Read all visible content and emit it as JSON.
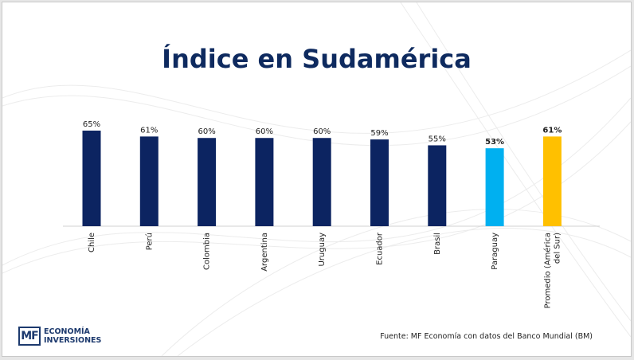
{
  "title": "Índice en Sudamérica",
  "source": "Fuente: MF Economía con datos del Banco Mundial (BM)",
  "logo": {
    "mark": "MF",
    "line1": "ECONOMÍA",
    "line2": "INVERSIONES"
  },
  "chart_data": {
    "type": "bar",
    "title": "Índice en Sudamérica",
    "categories": [
      "Chile",
      "Perú",
      "Colombia",
      "Argentina",
      "Uruguay",
      "Ecuador",
      "Brasil",
      "Paraguay",
      "Promedio (América del Sur)"
    ],
    "values": [
      65,
      61,
      60,
      60,
      60,
      59,
      55,
      53,
      61
    ],
    "labels": [
      "65%",
      "61%",
      "60%",
      "60%",
      "60%",
      "59%",
      "55%",
      "53%",
      "61%"
    ],
    "colors": [
      "#0c2461",
      "#0c2461",
      "#0c2461",
      "#0c2461",
      "#0c2461",
      "#0c2461",
      "#0c2461",
      "#00b0f0",
      "#ffc000"
    ],
    "bold_labels": [
      false,
      false,
      false,
      false,
      false,
      false,
      false,
      true,
      true
    ],
    "ylim": [
      0,
      65
    ],
    "grid": false,
    "xlabel": "",
    "ylabel": ""
  }
}
